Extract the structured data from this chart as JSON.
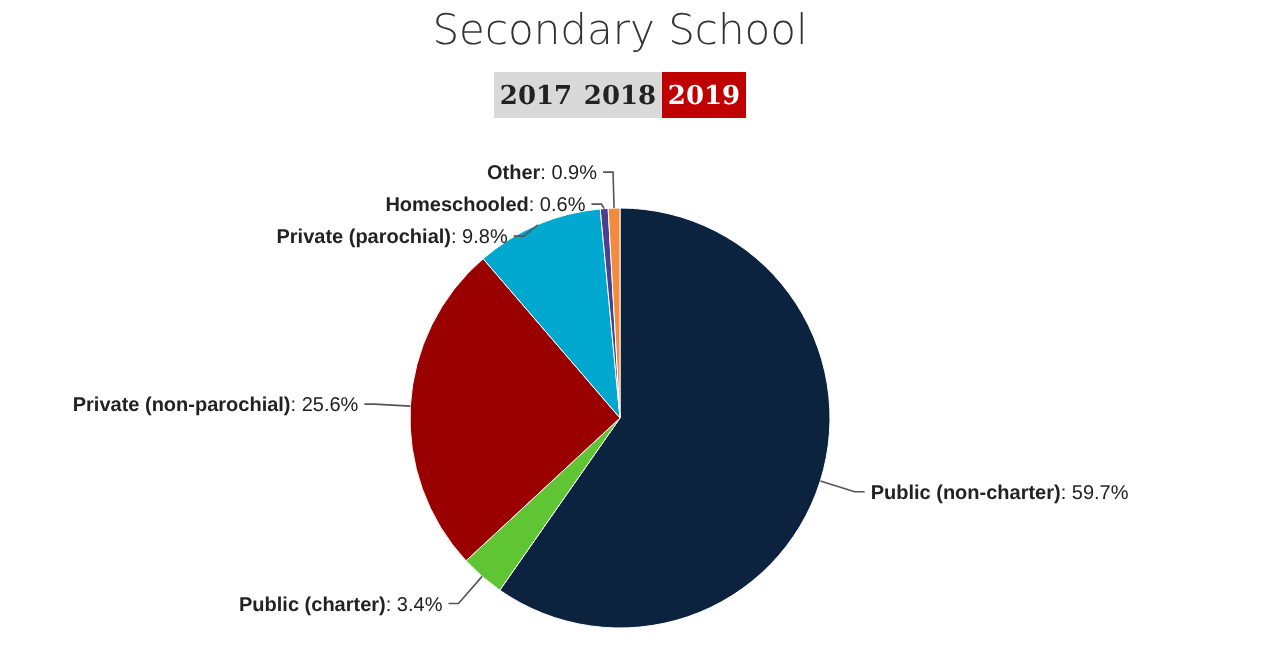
{
  "chart_data": {
    "type": "pie",
    "title": "Secondary School",
    "annotations": [
      "2017",
      "2018",
      "2019"
    ],
    "categories": [
      "Public (non-charter)",
      "Public (charter)",
      "Private (non-parochial)",
      "Private (parochial)",
      "Homeschooled",
      "Other"
    ],
    "values": [
      59.7,
      3.4,
      25.6,
      9.8,
      0.6,
      0.9
    ],
    "value_labels": [
      ": 59.7%",
      ": 3.4%",
      ": 25.6%",
      ": 9.8%",
      ": 0.6%",
      ": 0.9%"
    ],
    "colors": [
      "#0c2340",
      "#5fc533",
      "#9b0000",
      "#00a8d0",
      "#4b3f8f",
      "#f08c3c"
    ]
  }
}
